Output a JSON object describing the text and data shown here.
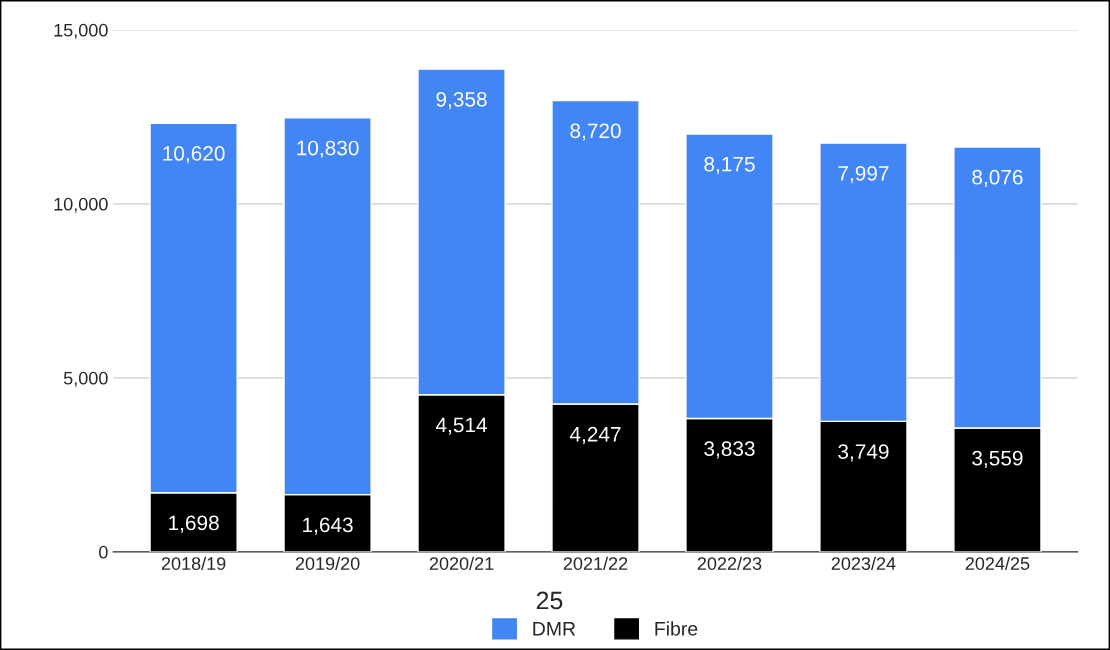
{
  "chart_data": {
    "type": "bar",
    "stacked": true,
    "categories": [
      "2018/19",
      "2019/20",
      "2020/21",
      "2021/22",
      "2022/23",
      "2023/24",
      "2024/25"
    ],
    "series": [
      {
        "name": "Fibre",
        "color": "#000000",
        "values": [
          1698,
          1643,
          4514,
          4247,
          3833,
          3749,
          3559
        ],
        "value_labels": [
          "1,698",
          "1,643",
          "4,514",
          "4,247",
          "3,833",
          "3,749",
          "3,559"
        ]
      },
      {
        "name": "DMR",
        "color": "#4285f4",
        "values": [
          10620,
          10830,
          9358,
          8720,
          8175,
          7997,
          8076
        ],
        "value_labels": [
          "10,620",
          "10,830",
          "9,358",
          "8,720",
          "8,175",
          "7,997",
          "8,076"
        ]
      }
    ],
    "ylim": [
      0,
      15000
    ],
    "yticks": [
      {
        "value": 0,
        "label": "0"
      },
      {
        "value": 5000,
        "label": "5,000"
      },
      {
        "value": 10000,
        "label": "10,000"
      },
      {
        "value": 15000,
        "label": "15,000"
      }
    ],
    "grid": "y",
    "legend": "bottom",
    "annotations": [
      "25"
    ]
  }
}
